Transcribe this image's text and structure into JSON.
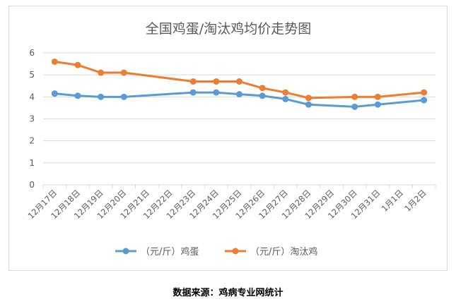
{
  "chart_data": {
    "type": "line",
    "title": "全国鸡蛋/淘汰鸡均价走势图",
    "categories": [
      "12月17日",
      "12月18日",
      "12月19日",
      "12月20日",
      "12月21日",
      "12月22日",
      "12月23日",
      "12月24日",
      "12月25日",
      "12月26日",
      "12月27日",
      "12月28日",
      "12月29日",
      "12月30日",
      "12月31日",
      "1月1日",
      "1月2日"
    ],
    "yticks": [
      "0",
      "1",
      "2",
      "3",
      "4",
      "5",
      "6"
    ],
    "ylim": [
      0,
      6
    ],
    "grid": true,
    "legend_position": "bottom",
    "series": [
      {
        "name": "（元/斤）鸡蛋",
        "color": "#5b9bd5",
        "values": [
          4.15,
          4.05,
          4.0,
          4.0,
          null,
          null,
          4.2,
          4.2,
          4.12,
          4.05,
          3.9,
          3.65,
          null,
          3.55,
          3.65,
          null,
          3.85
        ]
      },
      {
        "name": "（元/斤）淘汰鸡",
        "color": "#ed7d31",
        "values": [
          5.6,
          5.45,
          5.1,
          5.1,
          null,
          null,
          4.7,
          4.7,
          4.7,
          4.4,
          4.2,
          3.95,
          null,
          4.0,
          4.0,
          null,
          4.2
        ]
      }
    ]
  },
  "source": "数据来源：鸡病专业网统计"
}
